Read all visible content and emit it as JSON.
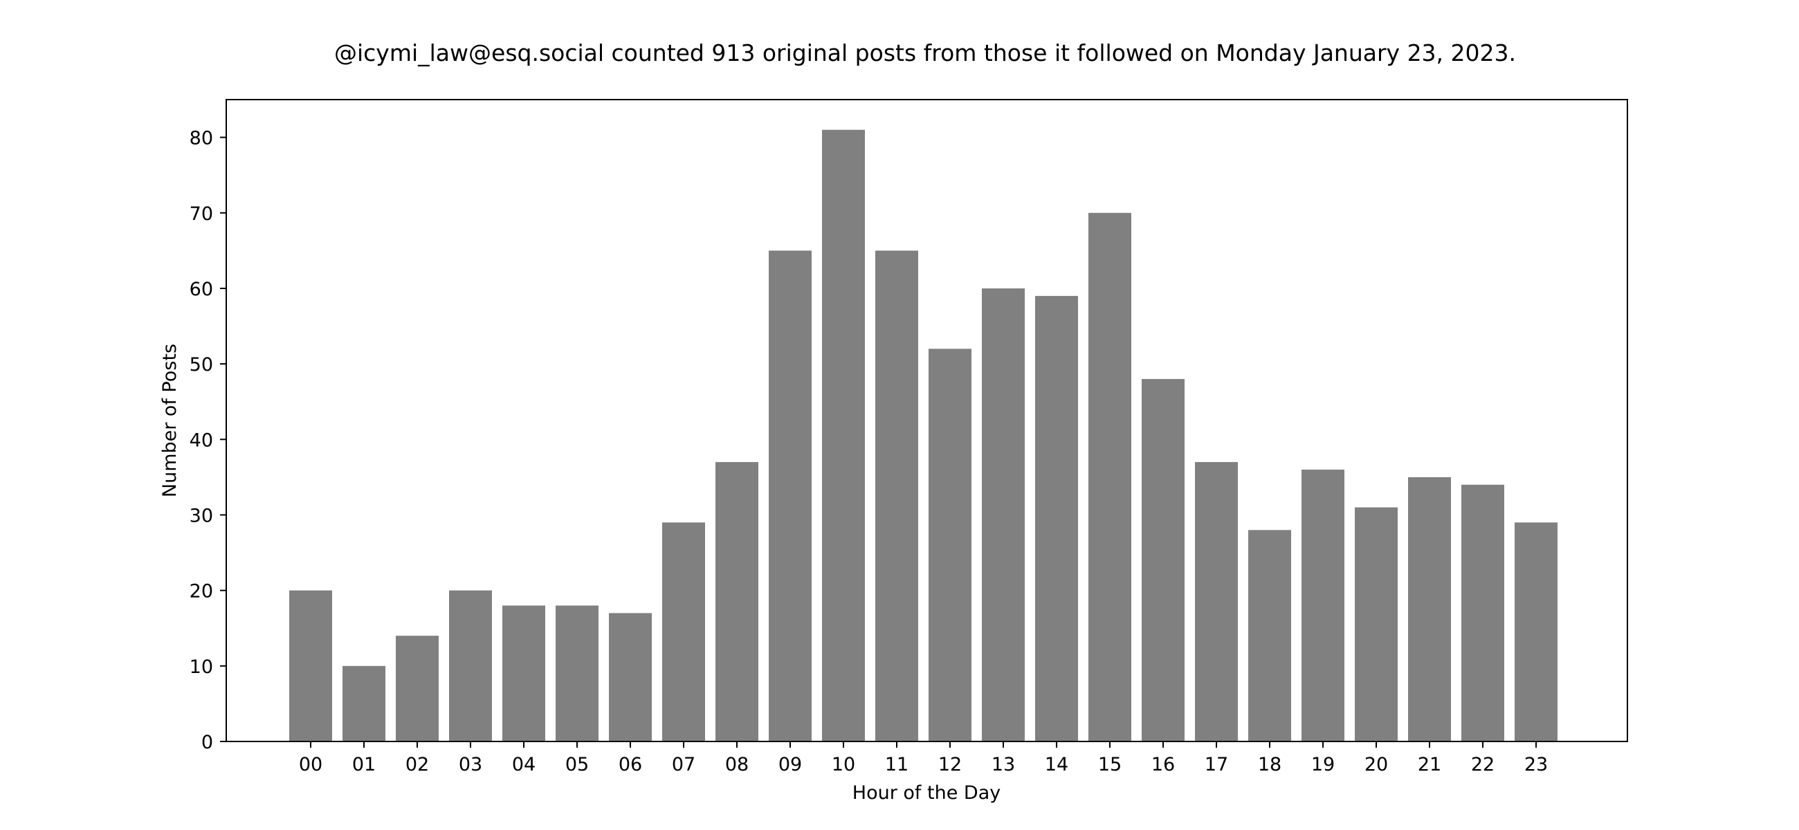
{
  "chart_data": {
    "type": "bar",
    "title": "@icymi_law@esq.social counted 913 original posts from those it followed on Monday January 23, 2023.",
    "xlabel": "Hour of the Day",
    "ylabel": "Number of Posts",
    "categories": [
      "00",
      "01",
      "02",
      "03",
      "04",
      "05",
      "06",
      "07",
      "08",
      "09",
      "10",
      "11",
      "12",
      "13",
      "14",
      "15",
      "16",
      "17",
      "18",
      "19",
      "20",
      "21",
      "22",
      "23"
    ],
    "values": [
      20,
      10,
      14,
      20,
      18,
      18,
      17,
      29,
      37,
      65,
      81,
      65,
      52,
      60,
      59,
      70,
      48,
      37,
      28,
      36,
      31,
      35,
      34,
      29
    ],
    "ylim": [
      0,
      85
    ],
    "yticks": [
      0,
      10,
      20,
      30,
      40,
      50,
      60,
      70,
      80
    ],
    "grid": false,
    "legend": "none",
    "bar_color": "#808080",
    "frame_color": "#000000",
    "background_color": "#ffffff"
  }
}
